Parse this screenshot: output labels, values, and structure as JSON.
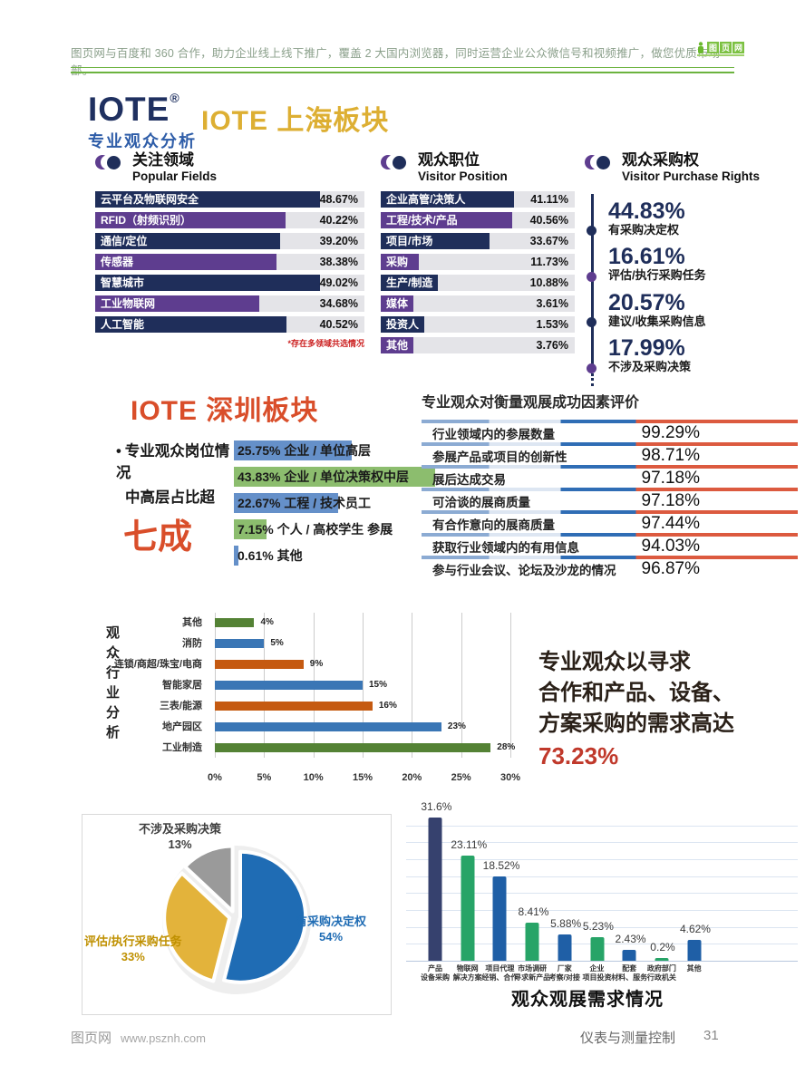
{
  "palette": {
    "navy": "#1f2e5a",
    "purple": "#5e3d8f",
    "sz_blue": "#6590c9",
    "sz_green": "#8cbd6e",
    "ind_blue": "#3a76b5",
    "ind_orange": "#c55a11",
    "ind_green": "#548235",
    "dem_navy": "#36416e",
    "dem_green": "#27a467",
    "dem_blue": "#1f5fa6",
    "pie_blue": "#1f6cb4",
    "pie_gold": "#e3b33b",
    "pie_gray": "#9a9a9a",
    "pie_label_gold": "#bf9000",
    "pie_label_gray": "#3f3f3f"
  },
  "header": {
    "text": "图页网与百度和 360 合作，助力企业线上线下推广，覆盖 2 大国内浏览器，同时运营企业公众微信号和视频推广，做您优质市场部。",
    "logo_chars": [
      "图",
      "页",
      "网"
    ]
  },
  "branding": {
    "logo": "IOTE",
    "reg": "®",
    "subtitle": "专业观众分析"
  },
  "shanghai_title": "IOTE 上海板块",
  "shenzhen": {
    "title": "IOTE 深圳板块",
    "note_line1": "专业观众岗位情况",
    "note_line2": "中高层占比超",
    "note_big": "七成"
  },
  "demand_note": {
    "lines": [
      "专业观众以寻求",
      "合作和产品、设备、",
      "方案采购的需求高达"
    ],
    "highlight": "73.23%"
  },
  "footer": {
    "brand": "图页网",
    "url": "www.psznh.com",
    "journal": "仪表与测量控制",
    "page": "31"
  },
  "chart_data": [
    {
      "id": "popular_fields",
      "type": "bar",
      "title": "关注领域",
      "subtitle": "Popular Fields",
      "footnote": "*存在多领域共选情况",
      "categories": [
        "云平台及物联网安全",
        "RFID（射频识别）",
        "通信/定位",
        "传感器",
        "智慧城市",
        "工业物联网",
        "人工智能"
      ],
      "values": [
        48.67,
        40.22,
        39.2,
        38.38,
        49.02,
        34.68,
        40.52
      ],
      "unit": "%",
      "bar_colors": [
        "navy",
        "purple",
        "navy",
        "purple",
        "navy",
        "purple",
        "navy"
      ]
    },
    {
      "id": "visitor_position",
      "type": "bar",
      "title": "观众职位",
      "subtitle": "Visitor Position",
      "categories": [
        "企业高管/决策人",
        "工程/技术/产品",
        "项目/市场",
        "采购",
        "生产/制造",
        "媒体",
        "投资人",
        "其他"
      ],
      "values": [
        41.11,
        40.56,
        33.67,
        11.73,
        10.88,
        3.61,
        1.53,
        3.76
      ],
      "unit": "%",
      "bar_colors": [
        "navy",
        "purple",
        "navy",
        "purple",
        "navy",
        "purple",
        "navy",
        "purple"
      ]
    },
    {
      "id": "purchase_rights",
      "type": "list",
      "title": "观众采购权",
      "subtitle": "Visitor  Purchase Rights",
      "items": [
        {
          "value": "44.83%",
          "label": "有采购决定权",
          "dot": "navy"
        },
        {
          "value": "16.61%",
          "label": "评估/执行采购任务",
          "dot": "purple"
        },
        {
          "value": "20.57%",
          "label": "建议/收集采购信息",
          "dot": "navy"
        },
        {
          "value": "17.99%",
          "label": "不涉及采购决策",
          "dot": "purple"
        }
      ]
    },
    {
      "id": "shenzhen_positions",
      "type": "bar",
      "categories": [
        "企业 / 单位高层",
        "企业 / 单位决策权中层",
        "工程 / 技术员工",
        "个人 / 高校学生 参展",
        "其他"
      ],
      "values": [
        25.75,
        43.83,
        22.67,
        7.15,
        0.61
      ],
      "unit": "%",
      "bar_colors": [
        "sz_blue",
        "sz_green",
        "sz_blue",
        "sz_green",
        "sz_blue"
      ]
    },
    {
      "id": "success_factors",
      "type": "table",
      "title": "专业观众对衡量观展成功因素评价",
      "categories": [
        "行业领域内的参展数量",
        "参展产品或项目的创新性",
        "展后达成交易",
        "可洽谈的展商质量",
        "有合作意向的展商质量",
        "获取行业领域内的有用信息",
        "参与行业会议、论坛及沙龙的情况"
      ],
      "values": [
        99.29,
        98.71,
        97.18,
        97.18,
        97.44,
        94.03,
        96.87
      ],
      "unit": "%"
    },
    {
      "id": "industry",
      "type": "bar",
      "ylabel": "观众行业分析",
      "categories": [
        "其他",
        "消防",
        "连锁/商超/珠宝/电商",
        "智能家居",
        "三表/能源",
        "地产园区",
        "工业制造"
      ],
      "values": [
        4,
        5,
        9,
        15,
        16,
        23,
        28
      ],
      "unit": "%",
      "bar_colors": [
        "ind_green",
        "ind_blue",
        "ind_orange",
        "ind_blue",
        "ind_orange",
        "ind_blue",
        "ind_green"
      ],
      "x_ticks": [
        "0%",
        "5%",
        "10%",
        "15%",
        "20%",
        "25%",
        "30%"
      ],
      "xlim": [
        0,
        30
      ],
      "grid": true
    },
    {
      "id": "purchase_pie",
      "type": "pie",
      "slices": [
        {
          "label": "有采购决定权",
          "pct": "54%",
          "value": 54,
          "color": "pie_blue",
          "label_color": "pie_blue"
        },
        {
          "label": "评估/执行采购任务",
          "pct": "33%",
          "value": 33,
          "color": "pie_gold",
          "label_color": "pie_label_gold"
        },
        {
          "label": "不涉及采购决策",
          "pct": "13%",
          "value": 13,
          "color": "pie_gray",
          "label_color": "pie_label_gray"
        }
      ]
    },
    {
      "id": "demand",
      "type": "bar",
      "title": "观众观展需求情况",
      "categories": [
        [
          "产品",
          "设备采购"
        ],
        [
          "物联网",
          "解决方案"
        ],
        [
          "项目代理",
          "经销、合作"
        ],
        [
          "市场调研",
          "寻求新产品"
        ],
        [
          "厂家",
          "考察/对接"
        ],
        [
          "企业",
          "项目投资"
        ],
        [
          "配套",
          "材料、服务"
        ],
        [
          "政府部门",
          "行政机关"
        ],
        [
          "其他",
          ""
        ]
      ],
      "values": [
        31.6,
        23.11,
        18.52,
        8.41,
        5.88,
        5.23,
        2.43,
        0.2,
        4.62
      ],
      "labels": [
        "31.6%",
        "23.11%",
        "18.52%",
        "8.41%",
        "5.88%",
        "5.23%",
        "2.43%",
        "0.2%",
        "4.62%"
      ],
      "unit": "%",
      "ylim": [
        0,
        32
      ],
      "grid": true,
      "bar_colors": [
        "dem_navy",
        "dem_green",
        "dem_blue",
        "dem_green",
        "dem_blue",
        "dem_green",
        "dem_blue",
        "dem_green",
        "dem_blue"
      ]
    }
  ]
}
